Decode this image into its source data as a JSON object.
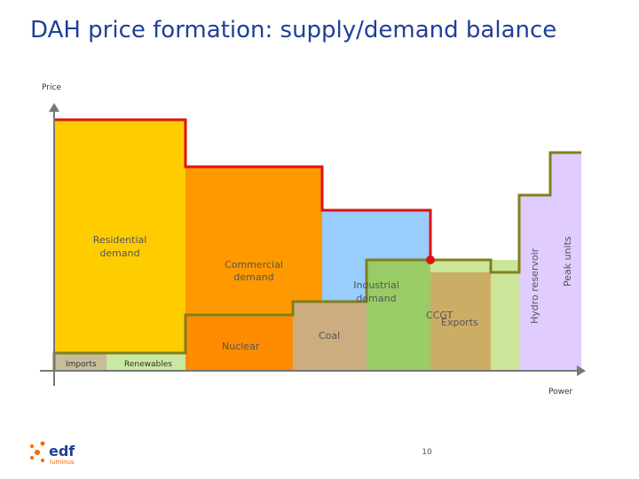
{
  "title": "DAH price formation: supply/demand balance",
  "y_axis_label": "Price",
  "x_axis_label": "Power",
  "demand": {
    "residential": [
      "Residential",
      "demand"
    ],
    "commercial": [
      "Commercial",
      "demand"
    ],
    "industrial": [
      "Industrial",
      "demand"
    ]
  },
  "supply": {
    "imports": "Imports",
    "renewables": "Renewables",
    "nuclear": "Nuclear",
    "coal": "Coal",
    "ccgt": "CCGT",
    "exports": "Exports",
    "hydro": "Hydro reservoir",
    "peak": "Peak units"
  },
  "page_number": "10",
  "logo": {
    "brand": "edf",
    "sub": "luminus"
  }
}
